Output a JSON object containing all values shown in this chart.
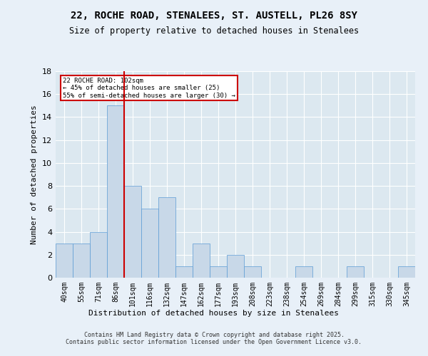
{
  "title1": "22, ROCHE ROAD, STENALEES, ST. AUSTELL, PL26 8SY",
  "title2": "Size of property relative to detached houses in Stenalees",
  "xlabel": "Distribution of detached houses by size in Stenalees",
  "ylabel": "Number of detached properties",
  "categories": [
    "40sqm",
    "55sqm",
    "71sqm",
    "86sqm",
    "101sqm",
    "116sqm",
    "132sqm",
    "147sqm",
    "162sqm",
    "177sqm",
    "193sqm",
    "208sqm",
    "223sqm",
    "238sqm",
    "254sqm",
    "269sqm",
    "284sqm",
    "299sqm",
    "315sqm",
    "330sqm",
    "345sqm"
  ],
  "values": [
    3,
    3,
    4,
    15,
    8,
    6,
    7,
    1,
    3,
    1,
    2,
    1,
    0,
    0,
    1,
    0,
    0,
    1,
    0,
    0,
    1
  ],
  "bar_color": "#c8d8e8",
  "bar_edge_color": "#5b9bd5",
  "vline_x_index": 4,
  "vline_color": "#cc0000",
  "annotation_title": "22 ROCHE ROAD: 102sqm",
  "annotation_line1": "← 45% of detached houses are smaller (25)",
  "annotation_line2": "55% of semi-detached houses are larger (30) →",
  "annotation_box_color": "#cc0000",
  "ylim": [
    0,
    18
  ],
  "yticks": [
    0,
    2,
    4,
    6,
    8,
    10,
    12,
    14,
    16,
    18
  ],
  "footer": "Contains HM Land Registry data © Crown copyright and database right 2025.\nContains public sector information licensed under the Open Government Licence v3.0.",
  "bg_color": "#e8f0f8",
  "plot_bg_color": "#dce8f0"
}
